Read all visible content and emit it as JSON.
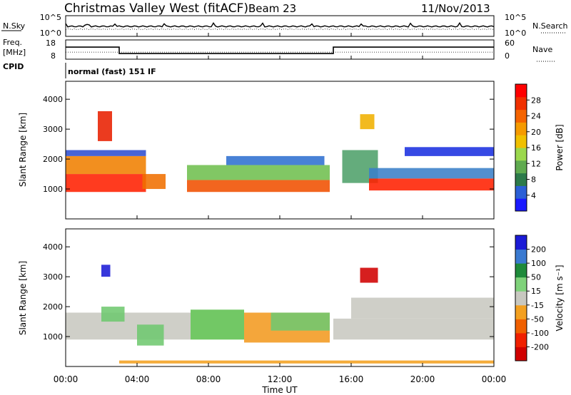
{
  "header": {
    "station": "Christmas Valley West (fitACF)",
    "beam": "Beam 23",
    "date": "11/Nov/2013"
  },
  "chart_data": [
    {
      "type": "line",
      "panel": "noise",
      "left_label": "N.Sky",
      "right_label": "N.Search",
      "yticks_left": [
        "10^5",
        "10^0"
      ],
      "yticks_right": [
        "10^5",
        "10^0"
      ]
    },
    {
      "type": "line",
      "panel": "frequency",
      "left_label_1": "Freq.",
      "left_label_2": "[MHz]",
      "right_label": "Nave",
      "cpid_label": "CPID",
      "cpid_text": "normal (fast) 151 IF",
      "yticks_left": [
        "18",
        "8"
      ],
      "yticks_right": [
        "60",
        "0"
      ],
      "freq_series": {
        "x": [
          0,
          3.0,
          3.0,
          15.0,
          15.0,
          24
        ],
        "y": [
          14.5,
          14.5,
          10.5,
          10.5,
          14.5,
          14.5
        ],
        "ylim": [
          7,
          19
        ]
      },
      "nave_series": {
        "x": [
          0,
          24
        ],
        "y": [
          22,
          22
        ],
        "ylim": [
          0,
          60
        ]
      }
    },
    {
      "type": "heatmap",
      "panel": "power",
      "ylabel": "Slant Range [km]",
      "yticks": [
        "1000",
        "2000",
        "3000",
        "4000"
      ],
      "ylim": [
        0,
        4600
      ],
      "colorbar_label": "Power [dB]",
      "colorbar_ticks": [
        "4",
        "8",
        "12",
        "16",
        "20",
        "24",
        "28"
      ],
      "colorbar_colors": [
        "#1a1aff",
        "#2b5fd6",
        "#2c7a4a",
        "#5faa4f",
        "#9bd84d",
        "#f0c000",
        "#f59a00",
        "#f56400",
        "#f03000",
        "#ff0000"
      ]
    },
    {
      "type": "heatmap",
      "panel": "velocity",
      "ylabel": "Slant Range [km]",
      "yticks": [
        "1000",
        "2000",
        "3000",
        "4000"
      ],
      "ylim": [
        0,
        4600
      ],
      "colorbar_label": "Velocity [m s⁻¹]",
      "colorbar_ticks": [
        "200",
        "100",
        "50",
        "15",
        "-15",
        "-50",
        "-100",
        "-200"
      ],
      "colorbar_colors": [
        "#1b1bd6",
        "#3a7ad1",
        "#1e8a3a",
        "#7fd27a",
        "#c8c8c0",
        "#f3a020",
        "#f06000",
        "#f02000",
        "#d00000"
      ]
    }
  ],
  "xaxis": {
    "label": "Time UT",
    "ticks": [
      "00:00",
      "04:00",
      "08:00",
      "12:00",
      "16:00",
      "20:00",
      "00:00"
    ]
  },
  "power_patches": [
    {
      "t0": 0.0,
      "t1": 4.5,
      "r0": 900,
      "r1": 1500,
      "c": "#ff2000"
    },
    {
      "t0": 0.0,
      "t1": 4.5,
      "r0": 1500,
      "r1": 2100,
      "c": "#f08000"
    },
    {
      "t0": 0.0,
      "t1": 4.5,
      "r0": 2100,
      "r1": 2300,
      "c": "#2f4fd0"
    },
    {
      "t0": 1.8,
      "t1": 2.6,
      "r0": 2600,
      "r1": 3600,
      "c": "#e82000"
    },
    {
      "t0": 4.3,
      "t1": 5.6,
      "r0": 1000,
      "r1": 1500,
      "c": "#f07000"
    },
    {
      "t0": 6.8,
      "t1": 14.8,
      "r0": 900,
      "r1": 1300,
      "c": "#f05000"
    },
    {
      "t0": 6.8,
      "t1": 14.8,
      "r0": 1300,
      "r1": 1800,
      "c": "#6fbf4f"
    },
    {
      "t0": 9.0,
      "t1": 14.5,
      "r0": 1800,
      "r1": 2100,
      "c": "#2f6fd0"
    },
    {
      "t0": 15.5,
      "t1": 17.5,
      "r0": 1200,
      "r1": 2300,
      "c": "#4fa06a"
    },
    {
      "t0": 17.0,
      "t1": 24.0,
      "r0": 950,
      "r1": 1350,
      "c": "#ff2000"
    },
    {
      "t0": 17.0,
      "t1": 24.0,
      "r0": 1350,
      "r1": 1700,
      "c": "#3a80c8"
    },
    {
      "t0": 19.0,
      "t1": 24.0,
      "r0": 2100,
      "r1": 2400,
      "c": "#1a30e0"
    },
    {
      "t0": 16.5,
      "t1": 17.3,
      "r0": 3000,
      "r1": 3500,
      "c": "#f0b000"
    }
  ],
  "velocity_patches": [
    {
      "t0": 0.0,
      "t1": 7.0,
      "r0": 900,
      "r1": 1800,
      "c": "#c8c8c0"
    },
    {
      "t0": 2.0,
      "t1": 3.3,
      "r0": 1500,
      "r1": 2000,
      "c": "#6fc86f"
    },
    {
      "t0": 4.0,
      "t1": 5.5,
      "r0": 700,
      "r1": 1400,
      "c": "#6fc86f"
    },
    {
      "t0": 7.0,
      "t1": 10.0,
      "r0": 900,
      "r1": 1900,
      "c": "#5fc050"
    },
    {
      "t0": 10.0,
      "t1": 14.8,
      "r0": 800,
      "r1": 1800,
      "c": "#f39a20"
    },
    {
      "t0": 11.5,
      "t1": 14.8,
      "r0": 1200,
      "r1": 1800,
      "c": "#6fc86f"
    },
    {
      "t0": 15.0,
      "t1": 24.0,
      "r0": 900,
      "r1": 1600,
      "c": "#c8c8c0"
    },
    {
      "t0": 16.0,
      "t1": 24.0,
      "r0": 1600,
      "r1": 2300,
      "c": "#c8c8c0"
    },
    {
      "t0": 2.0,
      "t1": 2.5,
      "r0": 3000,
      "r1": 3400,
      "c": "#1b1bd6"
    },
    {
      "t0": 16.5,
      "t1": 17.5,
      "r0": 2800,
      "r1": 3300,
      "c": "#d00000"
    },
    {
      "t0": 3.0,
      "t1": 24.0,
      "r0": 100,
      "r1": 200,
      "c": "#f3a020"
    }
  ]
}
